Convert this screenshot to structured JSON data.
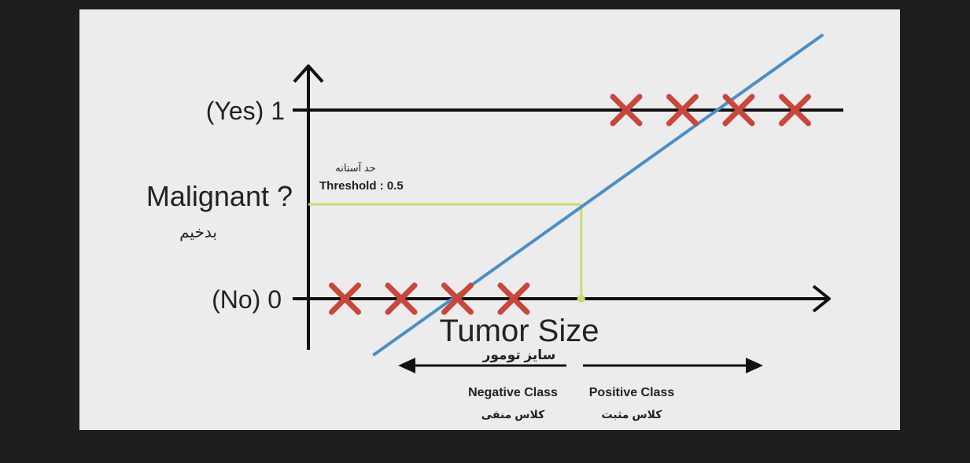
{
  "colors": {
    "background": "#1e1e1e",
    "slide": "#ececec",
    "axis": "#111111",
    "regression_line": "#4a8fc7",
    "marker": "#c9463b",
    "threshold": "#c6de6a"
  },
  "chart_data": {
    "type": "scatter",
    "title": "",
    "xlabel": "Tumor Size",
    "xlabel_fa": "سایز تومور",
    "ylabel": "Malignant ?",
    "ylabel_fa": "بدخیم",
    "y_ticks": [
      {
        "value": 0,
        "label": "(No) 0"
      },
      {
        "value": 1,
        "label": "(Yes) 1"
      }
    ],
    "points": [
      {
        "x": 1,
        "y": 0
      },
      {
        "x": 2,
        "y": 0
      },
      {
        "x": 3,
        "y": 0
      },
      {
        "x": 4,
        "y": 0
      },
      {
        "x": 6,
        "y": 1
      },
      {
        "x": 7,
        "y": 1
      },
      {
        "x": 8,
        "y": 1
      },
      {
        "x": 9,
        "y": 1
      }
    ],
    "fit_line": {
      "x_start": 1.5,
      "y_start": -0.3,
      "x_end": 9.5,
      "y_end": 1.4
    },
    "threshold": {
      "value": 0.5,
      "label": "Threshold : 0.5",
      "label_fa": "حد آستانه",
      "x_cut": 5.2
    },
    "classes": {
      "negative": {
        "label": "Negative Class",
        "label_fa": "کلاس منفی"
      },
      "positive": {
        "label": "Positive Class",
        "label_fa": "کلاس مثبت"
      }
    },
    "grid": false
  }
}
